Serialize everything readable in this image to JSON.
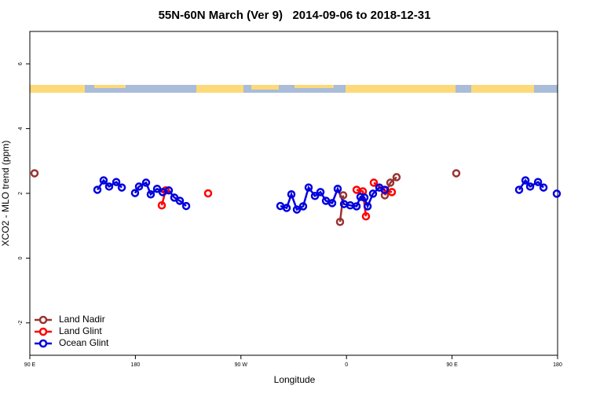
{
  "chart_data": {
    "type": "line",
    "title": "55N-60N March (Ver 9)   2014-09-06 to 2018-12-31",
    "x_label": "Longitude",
    "y_label": "XCO2 - MLO trend (ppm)",
    "xlim": [
      90,
      540
    ],
    "ylim": [
      -3,
      7
    ],
    "xticks": [
      {
        "value": 90,
        "label": "90 E"
      },
      180,
      {
        "value": 270,
        "label": "90 W"
      },
      {
        "value": 360,
        "label": "0"
      },
      {
        "value": 450,
        "label": "90 E"
      },
      {
        "value": 540,
        "label": "180"
      }
    ],
    "yticks": [
      -2,
      0,
      2,
      4,
      6
    ],
    "legend": "bottom-left",
    "series": [
      {
        "name": "Land Nadir",
        "color": "#993333",
        "x": [
          94.0,
          null,
          354.5,
          357.2,
          null,
          392.7,
          397.4,
          402.7,
          null,
          453.6
        ],
        "values": [
          2.62,
          null,
          1.12,
          1.94,
          null,
          1.94,
          2.33,
          2.5,
          null,
          2.62
        ]
      },
      {
        "name": "Land Glint",
        "color": "#ff0000",
        "x": [
          202.5,
          205.8,
          null,
          242.0,
          null,
          368.6,
          374.0,
          376.6,
          null,
          383.3,
          392.7,
          398.7
        ],
        "values": [
          1.63,
          2.09,
          null,
          2.0,
          null,
          2.11,
          2.06,
          1.29,
          null,
          2.33,
          2.09,
          2.04
        ]
      },
      {
        "name": "Ocean Glint",
        "color": "#0000dd",
        "x": [
          147.6,
          152.9,
          157.6,
          163.7,
          168.4,
          null,
          179.7,
          183.1,
          189.1,
          193.1,
          198.5,
          203.2,
          208.5,
          213.2,
          217.9,
          223.3,
          null,
          303.6,
          309.0,
          313.0,
          317.7,
          323.0,
          327.7,
          333.1,
          337.8,
          342.5,
          347.8,
          352.5,
          357.9,
          363.2,
          368.6,
          371.9,
          375.3,
          378.0,
          382.6,
          388.0,
          392.7,
          null,
          507.2,
          512.6,
          516.6,
          523.3,
          528.0,
          null,
          539.3
        ],
        "values": [
          2.11,
          2.4,
          2.21,
          2.35,
          2.18,
          null,
          2.01,
          2.21,
          2.33,
          1.97,
          2.14,
          2.04,
          2.09,
          1.87,
          1.77,
          1.61,
          null,
          1.61,
          1.55,
          1.97,
          1.5,
          1.6,
          2.18,
          1.92,
          2.04,
          1.77,
          1.7,
          2.14,
          1.67,
          1.63,
          1.6,
          1.89,
          1.87,
          1.6,
          1.99,
          2.18,
          2.11,
          null,
          2.11,
          2.4,
          2.21,
          2.35,
          2.18,
          null,
          1.99
        ]
      }
    ]
  }
}
